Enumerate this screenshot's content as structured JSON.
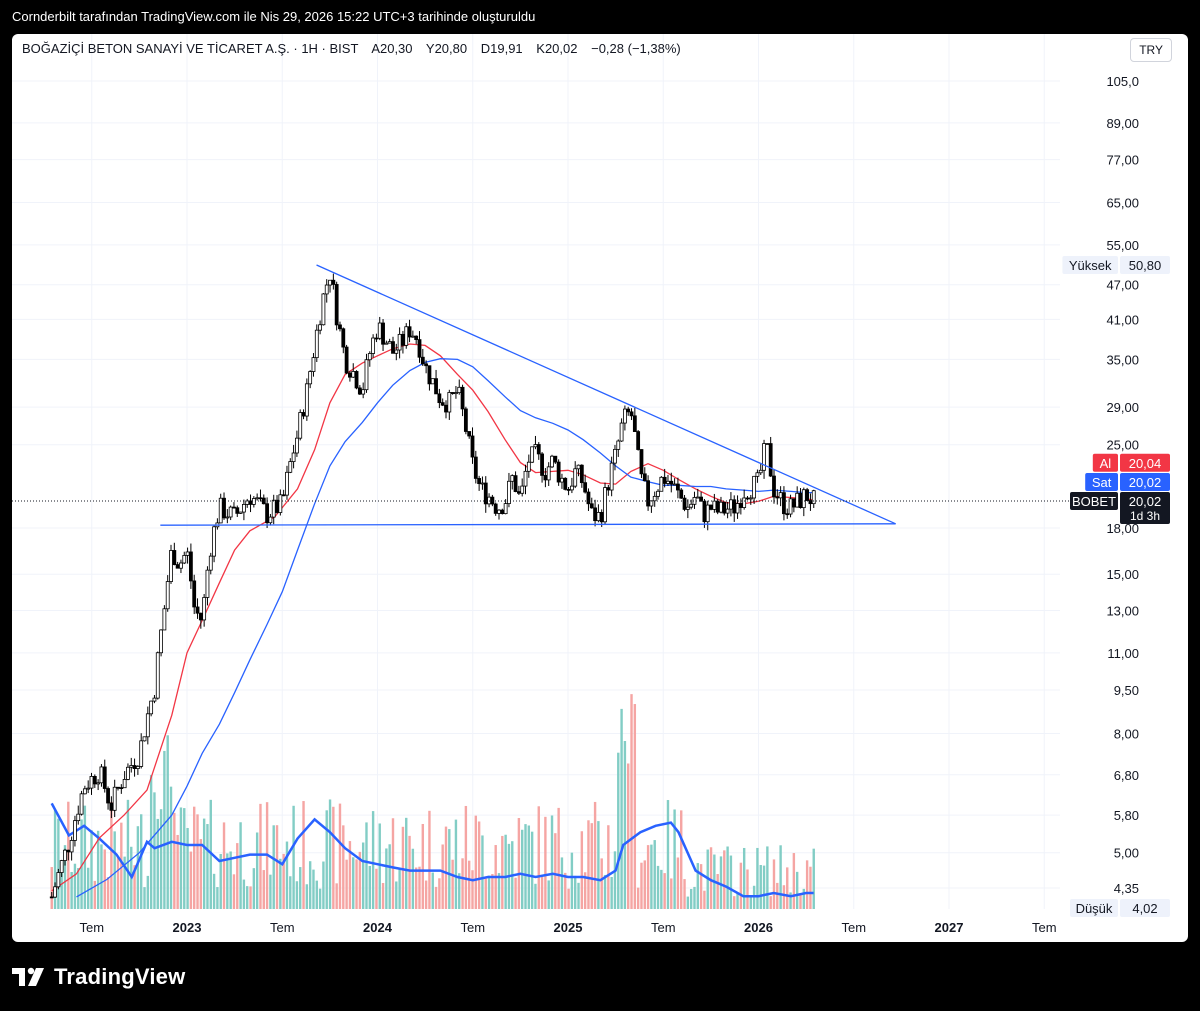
{
  "header": {
    "caption": "Cornderbilt tarafından TradingView.com ile Nis 29, 2026 15:22 UTC+3 tarihinde oluşturuldu"
  },
  "legend": {
    "symbol_name": "BOĞAZİÇİ BETON SANAYİ VE TİCARET A.Ş. · 1H · BIST",
    "open": "A20,30",
    "high": "Y20,80",
    "low": "D19,91",
    "close": "K20,02",
    "change": "−0,28 (−1,38%)"
  },
  "currency_button": "TRY",
  "footer": {
    "brand": "TradingView"
  },
  "colors": {
    "up": "#26a69a",
    "down": "#ef5350",
    "ma_fast": "#f23645",
    "ma_slow": "#2962ff",
    "trendline": "#2962ff",
    "volume_up": "#82cdc5",
    "volume_down": "#f5a5a3",
    "volume_ma": "#2962ff"
  },
  "chart_data": {
    "type": "candlestick",
    "scale": "log",
    "x_axis_labels": [
      "Tem",
      "2023",
      "Tem",
      "2024",
      "Tem",
      "2025",
      "Tem",
      "2026",
      "Tem",
      "2027",
      "Tem"
    ],
    "x_axis_dates": [
      2022.5,
      2023.0,
      2023.5,
      2024.0,
      2024.5,
      2025.0,
      2025.5,
      2026.0,
      2026.5,
      2027.0,
      2027.5
    ],
    "y_axis_labels": [
      "105,0",
      "89,00",
      "77,00",
      "65,00",
      "55,00",
      "47,00",
      "41,00",
      "35,00",
      "29,00",
      "25,00",
      "18,00",
      "15,00",
      "13,00",
      "11,00",
      "9,50",
      "8,00",
      "6,80",
      "5,80",
      "5,00",
      "4,35"
    ],
    "y_axis_values": [
      105,
      89,
      77,
      65,
      55,
      47,
      41,
      35,
      29,
      25,
      18,
      15,
      13,
      11,
      9.5,
      8,
      6.8,
      5.8,
      5.0,
      4.35
    ],
    "price_tags": [
      {
        "label": "Yüksek",
        "value": "50,80",
        "price": 50.8,
        "style": "plain"
      },
      {
        "label": "Al",
        "value": "20,04",
        "price": 20.04,
        "style": "bid"
      },
      {
        "label": "Sat",
        "value": "20,02",
        "price": 20.02,
        "style": "ask"
      },
      {
        "label": "BOBET",
        "value": "20,02",
        "sub": "1d 3h",
        "price": 20.02,
        "style": "last"
      },
      {
        "label": "Düşük",
        "value": "4,02",
        "price": 4.02,
        "style": "plain"
      }
    ],
    "last_price": 20.02,
    "price_path": [
      [
        2022.29,
        4.2
      ],
      [
        2022.38,
        5.2
      ],
      [
        2022.46,
        6.5
      ],
      [
        2022.54,
        6.9
      ],
      [
        2022.6,
        6.0
      ],
      [
        2022.67,
        6.8
      ],
      [
        2022.75,
        7.4
      ],
      [
        2022.83,
        9.6
      ],
      [
        2022.88,
        13
      ],
      [
        2022.92,
        16.5
      ],
      [
        2022.96,
        15.6
      ],
      [
        2023.0,
        16.4
      ],
      [
        2023.04,
        13.0
      ],
      [
        2023.08,
        12.5
      ],
      [
        2023.12,
        16.5
      ],
      [
        2023.17,
        19.5
      ],
      [
        2023.25,
        18.8
      ],
      [
        2023.33,
        20.5
      ],
      [
        2023.42,
        19.0
      ],
      [
        2023.5,
        19.8
      ],
      [
        2023.54,
        23
      ],
      [
        2023.58,
        26
      ],
      [
        2023.63,
        31
      ],
      [
        2023.67,
        37
      ],
      [
        2023.71,
        44
      ],
      [
        2023.75,
        49.5
      ],
      [
        2023.79,
        41
      ],
      [
        2023.83,
        35
      ],
      [
        2023.88,
        33
      ],
      [
        2023.92,
        31
      ],
      [
        2023.96,
        36
      ],
      [
        2024.0,
        40
      ],
      [
        2024.04,
        38
      ],
      [
        2024.08,
        36
      ],
      [
        2024.13,
        37.5
      ],
      [
        2024.17,
        39.5
      ],
      [
        2024.21,
        38
      ],
      [
        2024.25,
        34
      ],
      [
        2024.29,
        32
      ],
      [
        2024.33,
        30
      ],
      [
        2024.38,
        29.5
      ],
      [
        2024.42,
        31
      ],
      [
        2024.46,
        27
      ],
      [
        2024.5,
        23
      ],
      [
        2024.54,
        21
      ],
      [
        2024.58,
        20.5
      ],
      [
        2024.63,
        19.5
      ],
      [
        2024.67,
        20
      ],
      [
        2024.71,
        22
      ],
      [
        2024.75,
        20
      ],
      [
        2024.79,
        23.5
      ],
      [
        2024.83,
        24
      ],
      [
        2024.88,
        22.5
      ],
      [
        2024.92,
        23.5
      ],
      [
        2024.96,
        22.0
      ],
      [
        2025.0,
        21.0
      ],
      [
        2025.04,
        22.5
      ],
      [
        2025.08,
        21.5
      ],
      [
        2025.12,
        19.0
      ],
      [
        2025.17,
        18.8
      ],
      [
        2025.21,
        21.5
      ],
      [
        2025.25,
        24.0
      ],
      [
        2025.29,
        27.5
      ],
      [
        2025.33,
        28.5
      ],
      [
        2025.38,
        22.0
      ],
      [
        2025.42,
        20.0
      ],
      [
        2025.46,
        21.0
      ],
      [
        2025.5,
        22.0
      ],
      [
        2025.54,
        21.5
      ],
      [
        2025.58,
        20.5
      ],
      [
        2025.63,
        19.5
      ],
      [
        2025.67,
        20.5
      ],
      [
        2025.71,
        19.0
      ],
      [
        2025.75,
        19.5
      ],
      [
        2025.79,
        19.2
      ],
      [
        2025.83,
        19.4
      ],
      [
        2025.88,
        19.6
      ],
      [
        2025.92,
        20.8
      ],
      [
        2025.96,
        21.2
      ],
      [
        2026.0,
        21.5
      ],
      [
        2026.04,
        25.0
      ],
      [
        2026.08,
        21.0
      ],
      [
        2026.13,
        19.8
      ],
      [
        2026.17,
        19.5
      ],
      [
        2026.21,
        20.0
      ],
      [
        2026.25,
        20.5
      ],
      [
        2026.29,
        20.02
      ]
    ],
    "ma_fast": [
      [
        2022.29,
        4.3
      ],
      [
        2022.42,
        4.6
      ],
      [
        2022.54,
        5.3
      ],
      [
        2022.67,
        5.8
      ],
      [
        2022.79,
        6.4
      ],
      [
        2022.92,
        8.6
      ],
      [
        2023.0,
        11.0
      ],
      [
        2023.08,
        12.5
      ],
      [
        2023.17,
        14.5
      ],
      [
        2023.25,
        16.5
      ],
      [
        2023.33,
        17.8
      ],
      [
        2023.46,
        18.8
      ],
      [
        2023.58,
        21
      ],
      [
        2023.67,
        24.5
      ],
      [
        2023.75,
        29.5
      ],
      [
        2023.83,
        33
      ],
      [
        2023.92,
        34.5
      ],
      [
        2024.0,
        35.5
      ],
      [
        2024.08,
        36.5
      ],
      [
        2024.17,
        37.2
      ],
      [
        2024.25,
        37.0
      ],
      [
        2024.33,
        35.5
      ],
      [
        2024.42,
        33.0
      ],
      [
        2024.5,
        31.0
      ],
      [
        2024.58,
        28.5
      ],
      [
        2024.67,
        25.5
      ],
      [
        2024.75,
        23.3
      ],
      [
        2024.83,
        22.4
      ],
      [
        2024.92,
        22.5
      ],
      [
        2025.0,
        22.6
      ],
      [
        2025.08,
        22.2
      ],
      [
        2025.17,
        21.5
      ],
      [
        2025.25,
        21.4
      ],
      [
        2025.33,
        22.5
      ],
      [
        2025.42,
        23.2
      ],
      [
        2025.5,
        22.6
      ],
      [
        2025.58,
        21.8
      ],
      [
        2025.67,
        21.0
      ],
      [
        2025.75,
        20.4
      ],
      [
        2025.83,
        19.9
      ],
      [
        2025.92,
        19.8
      ],
      [
        2026.0,
        20.0
      ],
      [
        2026.08,
        20.4
      ],
      [
        2026.17,
        20.3
      ],
      [
        2026.25,
        20.2
      ],
      [
        2026.29,
        20.1
      ]
    ],
    "ma_slow": [
      [
        2022.42,
        4.2
      ],
      [
        2022.58,
        4.5
      ],
      [
        2022.75,
        5.0
      ],
      [
        2022.92,
        5.8
      ],
      [
        2023.0,
        6.5
      ],
      [
        2023.08,
        7.4
      ],
      [
        2023.17,
        8.3
      ],
      [
        2023.25,
        9.4
      ],
      [
        2023.33,
        10.7
      ],
      [
        2023.42,
        12.3
      ],
      [
        2023.5,
        14.0
      ],
      [
        2023.58,
        16.5
      ],
      [
        2023.67,
        19.8
      ],
      [
        2023.75,
        23.0
      ],
      [
        2023.83,
        25.3
      ],
      [
        2023.92,
        27.3
      ],
      [
        2024.0,
        29.5
      ],
      [
        2024.08,
        31.6
      ],
      [
        2024.17,
        33.5
      ],
      [
        2024.25,
        34.6
      ],
      [
        2024.33,
        35.1
      ],
      [
        2024.42,
        35.0
      ],
      [
        2024.5,
        34.0
      ],
      [
        2024.58,
        32.2
      ],
      [
        2024.67,
        30.2
      ],
      [
        2024.75,
        28.6
      ],
      [
        2024.83,
        27.8
      ],
      [
        2024.92,
        27.2
      ],
      [
        2025.0,
        26.5
      ],
      [
        2025.08,
        25.5
      ],
      [
        2025.17,
        24.2
      ],
      [
        2025.25,
        23.0
      ],
      [
        2025.33,
        22.0
      ],
      [
        2025.42,
        21.6
      ],
      [
        2025.5,
        21.3
      ],
      [
        2025.58,
        21.3
      ],
      [
        2025.67,
        21.2
      ],
      [
        2025.75,
        21.2
      ],
      [
        2025.83,
        21.0
      ],
      [
        2025.92,
        20.9
      ],
      [
        2026.0,
        20.8
      ],
      [
        2026.08,
        20.9
      ],
      [
        2026.17,
        20.8
      ],
      [
        2026.25,
        20.7
      ],
      [
        2026.29,
        20.7
      ]
    ],
    "trendlines": [
      {
        "name": "upper",
        "from": [
          2023.68,
          50.8
        ],
        "to": [
          2026.72,
          18.3
        ]
      },
      {
        "name": "lower",
        "from": [
          2022.86,
          18.2
        ],
        "to": [
          2026.72,
          18.3
        ]
      }
    ],
    "volume_ma": [
      [
        2022.29,
        0.33
      ],
      [
        2022.38,
        0.23
      ],
      [
        2022.46,
        0.26
      ],
      [
        2022.54,
        0.22
      ],
      [
        2022.63,
        0.17
      ],
      [
        2022.71,
        0.1
      ],
      [
        2022.79,
        0.21
      ],
      [
        2022.83,
        0.19
      ],
      [
        2022.92,
        0.21
      ],
      [
        2023.0,
        0.2
      ],
      [
        2023.08,
        0.2
      ],
      [
        2023.17,
        0.15
      ],
      [
        2023.25,
        0.16
      ],
      [
        2023.33,
        0.17
      ],
      [
        2023.42,
        0.17
      ],
      [
        2023.5,
        0.14
      ],
      [
        2023.58,
        0.22
      ],
      [
        2023.67,
        0.28
      ],
      [
        2023.75,
        0.24
      ],
      [
        2023.83,
        0.19
      ],
      [
        2023.92,
        0.15
      ],
      [
        2024.0,
        0.14
      ],
      [
        2024.08,
        0.13
      ],
      [
        2024.17,
        0.12
      ],
      [
        2024.25,
        0.12
      ],
      [
        2024.33,
        0.12
      ],
      [
        2024.42,
        0.1
      ],
      [
        2024.5,
        0.09
      ],
      [
        2024.58,
        0.1
      ],
      [
        2024.67,
        0.1
      ],
      [
        2024.75,
        0.11
      ],
      [
        2024.83,
        0.1
      ],
      [
        2024.92,
        0.11
      ],
      [
        2025.0,
        0.1
      ],
      [
        2025.08,
        0.1
      ],
      [
        2025.17,
        0.09
      ],
      [
        2025.25,
        0.12
      ],
      [
        2025.29,
        0.2
      ],
      [
        2025.38,
        0.24
      ],
      [
        2025.46,
        0.26
      ],
      [
        2025.54,
        0.27
      ],
      [
        2025.58,
        0.24
      ],
      [
        2025.67,
        0.12
      ],
      [
        2025.75,
        0.09
      ],
      [
        2025.83,
        0.07
      ],
      [
        2025.92,
        0.04
      ],
      [
        2026.0,
        0.04
      ],
      [
        2026.08,
        0.05
      ],
      [
        2026.17,
        0.04
      ],
      [
        2026.25,
        0.05
      ],
      [
        2026.29,
        0.05
      ]
    ]
  }
}
